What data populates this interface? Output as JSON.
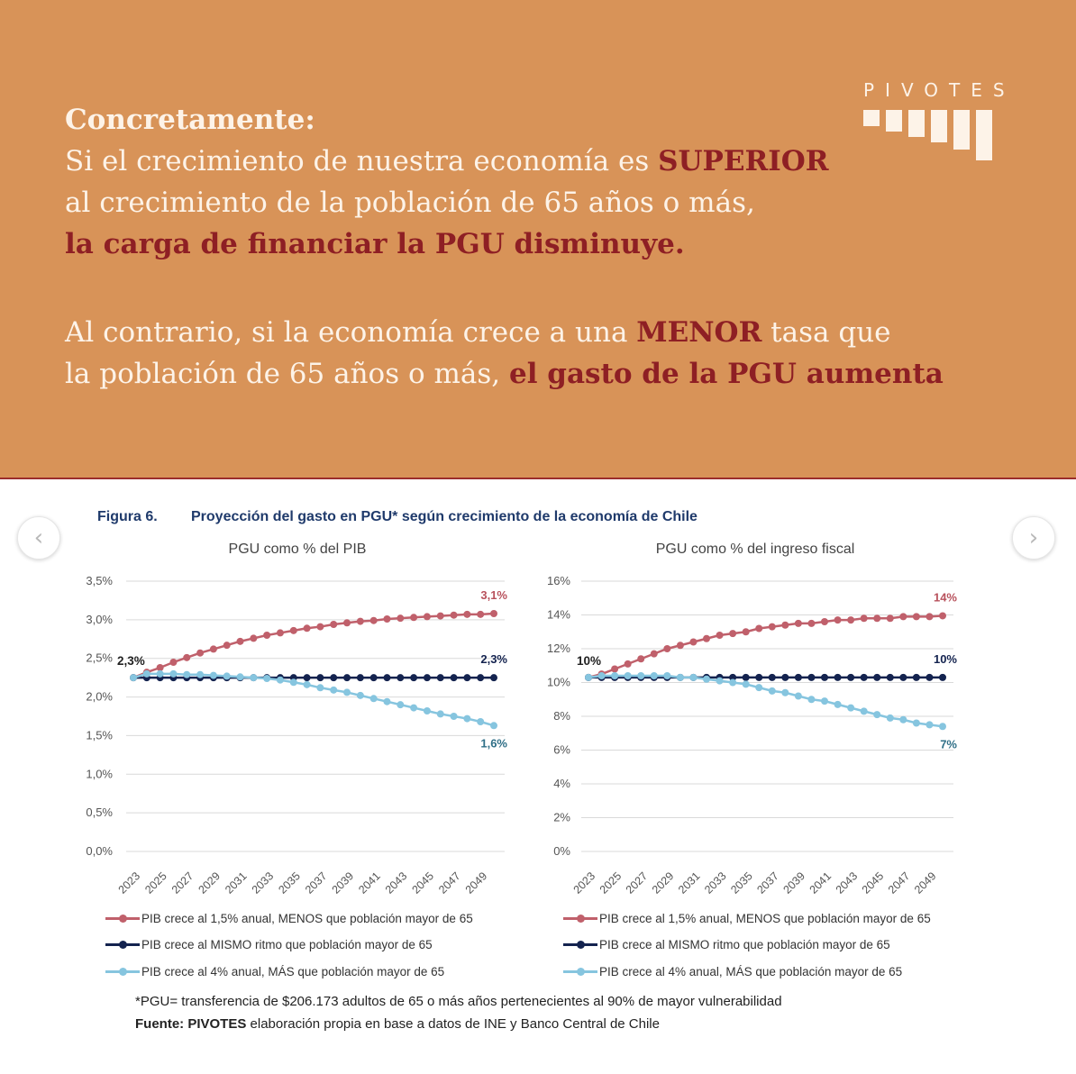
{
  "header": {
    "lead": "Concretamente:",
    "p1_l1_a": "Si el crecimiento de nuestra economía es ",
    "p1_l1_b": "SUPERIOR",
    "p1_l2": "al crecimiento de la población de 65 años o más,",
    "p1_l3": "la carga de financiar la PGU disminuye.",
    "p2_l1_a": "Al contrario, si la economía crece a una ",
    "p2_l1_b": "MENOR",
    "p2_l1_c": " tasa que",
    "p2_l2_a": "la población de 65 años o más, ",
    "p2_l2_b": "el gasto de la PGU aumenta"
  },
  "brand": {
    "name": "PIVOTES"
  },
  "nav": {
    "prev_icon": "chevron-left-icon",
    "next_icon": "chevron-right-icon"
  },
  "figure": {
    "label": "Figura 6.",
    "title": "Proyección del gasto en PGU* según crecimiento de la economía de Chile"
  },
  "legend": [
    {
      "label": "PIB crece al 1,5% anual, MENOS que población mayor de 65",
      "color": "#c0606b"
    },
    {
      "label": "PIB crece al MISMO ritmo que población mayor de 65",
      "color": "#14234f"
    },
    {
      "label": "PIB crece al 4% anual, MÁS que población mayor de 65",
      "color": "#86c5df"
    }
  ],
  "footnote": {
    "note": "*PGU= transferencia de $206.173 adultos de 65 o más años pertenecientes al 90% de mayor vulnerabilidad",
    "source_label": "Fuente: PIVOTES",
    "source_text": " elaboración propia en base a datos de INE y Banco Central de Chile"
  },
  "chart_data": [
    {
      "type": "line",
      "title": "PGU como % del PIB",
      "x": [
        2023,
        2024,
        2025,
        2026,
        2027,
        2028,
        2029,
        2030,
        2031,
        2032,
        2033,
        2034,
        2035,
        2036,
        2037,
        2038,
        2039,
        2040,
        2041,
        2042,
        2043,
        2044,
        2045,
        2046,
        2047,
        2048,
        2049,
        2050
      ],
      "xtick_labels": [
        "2023",
        "2025",
        "2027",
        "2029",
        "2031",
        "2033",
        "2035",
        "2037",
        "2039",
        "2041",
        "2043",
        "2045",
        "2047",
        "2049"
      ],
      "ylim": [
        0,
        3.5
      ],
      "ytick_values": [
        0,
        0.5,
        1.0,
        1.5,
        2.0,
        2.5,
        3.0,
        3.5
      ],
      "ytick_labels": [
        "0,0%",
        "0,5%",
        "1,0%",
        "1,5%",
        "2,0%",
        "2,5%",
        "3,0%",
        "3,5%"
      ],
      "grid": true,
      "series": [
        {
          "name": "PIB crece al 1,5% anual, MENOS que población mayor de 65",
          "color": "#c0606b",
          "values": [
            2.25,
            2.32,
            2.38,
            2.45,
            2.51,
            2.57,
            2.62,
            2.67,
            2.72,
            2.76,
            2.8,
            2.83,
            2.86,
            2.89,
            2.91,
            2.94,
            2.96,
            2.98,
            2.99,
            3.01,
            3.02,
            3.03,
            3.04,
            3.05,
            3.06,
            3.07,
            3.07,
            3.08
          ],
          "end_label": "3,1%"
        },
        {
          "name": "PIB crece al MISMO ritmo que población mayor de 65",
          "color": "#14234f",
          "values": [
            2.25,
            2.25,
            2.25,
            2.25,
            2.25,
            2.25,
            2.25,
            2.25,
            2.25,
            2.25,
            2.25,
            2.25,
            2.25,
            2.25,
            2.25,
            2.25,
            2.25,
            2.25,
            2.25,
            2.25,
            2.25,
            2.25,
            2.25,
            2.25,
            2.25,
            2.25,
            2.25,
            2.25
          ],
          "end_label": "2,3%"
        },
        {
          "name": "PIB crece al 4% anual, MÁS que población mayor de 65",
          "color": "#86c5df",
          "values": [
            2.25,
            2.3,
            2.3,
            2.3,
            2.29,
            2.29,
            2.28,
            2.27,
            2.26,
            2.25,
            2.24,
            2.22,
            2.19,
            2.16,
            2.12,
            2.09,
            2.06,
            2.02,
            1.98,
            1.94,
            1.9,
            1.86,
            1.82,
            1.78,
            1.75,
            1.72,
            1.68,
            1.63
          ],
          "end_label": "1,6%"
        }
      ],
      "start_label": "2,3%"
    },
    {
      "type": "line",
      "title": "PGU como % del ingreso fiscal",
      "x": [
        2023,
        2024,
        2025,
        2026,
        2027,
        2028,
        2029,
        2030,
        2031,
        2032,
        2033,
        2034,
        2035,
        2036,
        2037,
        2038,
        2039,
        2040,
        2041,
        2042,
        2043,
        2044,
        2045,
        2046,
        2047,
        2048,
        2049,
        2050
      ],
      "xtick_labels": [
        "2023",
        "2025",
        "2027",
        "2029",
        "2031",
        "2033",
        "2035",
        "2037",
        "2039",
        "2041",
        "2043",
        "2045",
        "2047",
        "2049"
      ],
      "ylim": [
        0,
        16
      ],
      "ytick_values": [
        0,
        2,
        4,
        6,
        8,
        10,
        12,
        14,
        16
      ],
      "ytick_labels": [
        "0%",
        "2%",
        "4%",
        "6%",
        "8%",
        "10%",
        "12%",
        "14%",
        "16%"
      ],
      "grid": true,
      "series": [
        {
          "name": "PIB crece al 1,5% anual, MENOS que población mayor de 65",
          "color": "#c0606b",
          "values": [
            10.3,
            10.5,
            10.8,
            11.1,
            11.4,
            11.7,
            12.0,
            12.2,
            12.4,
            12.6,
            12.8,
            12.9,
            13.0,
            13.2,
            13.3,
            13.4,
            13.5,
            13.5,
            13.6,
            13.7,
            13.7,
            13.8,
            13.8,
            13.8,
            13.9,
            13.9,
            13.9,
            13.95
          ],
          "end_label": "14%"
        },
        {
          "name": "PIB crece al MISMO ritmo que población mayor de 65",
          "color": "#14234f",
          "values": [
            10.3,
            10.3,
            10.3,
            10.3,
            10.3,
            10.3,
            10.3,
            10.3,
            10.3,
            10.3,
            10.3,
            10.3,
            10.3,
            10.3,
            10.3,
            10.3,
            10.3,
            10.3,
            10.3,
            10.3,
            10.3,
            10.3,
            10.3,
            10.3,
            10.3,
            10.3,
            10.3,
            10.3
          ],
          "end_label": "10%"
        },
        {
          "name": "PIB crece al 4% anual, MÁS que población mayor de 65",
          "color": "#86c5df",
          "values": [
            10.3,
            10.4,
            10.4,
            10.4,
            10.4,
            10.4,
            10.4,
            10.3,
            10.3,
            10.2,
            10.1,
            10.0,
            9.9,
            9.7,
            9.5,
            9.4,
            9.2,
            9.0,
            8.9,
            8.7,
            8.5,
            8.3,
            8.1,
            7.9,
            7.8,
            7.6,
            7.5,
            7.4
          ],
          "end_label": "7%"
        }
      ],
      "start_label": "10%"
    }
  ]
}
